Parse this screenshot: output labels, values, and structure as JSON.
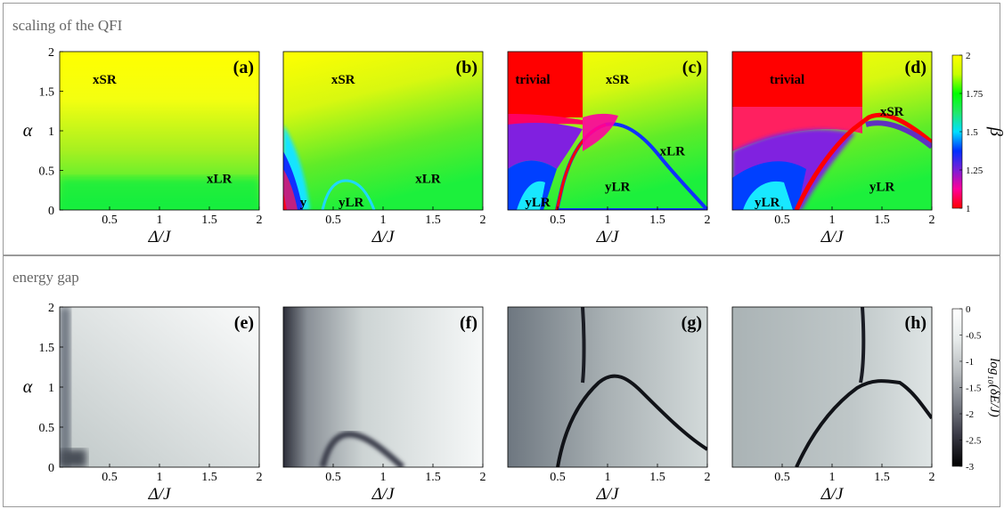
{
  "sections": [
    {
      "title": "scaling of the QFI"
    },
    {
      "title": "energy gap"
    }
  ],
  "chart_data": [
    {
      "type": "heatmap",
      "panel": "(a)",
      "section": "scaling of the QFI",
      "xlabel": "Δ/J",
      "ylabel": "α",
      "xlim": [
        0,
        2
      ],
      "ylim": [
        0,
        2
      ],
      "xticks": [
        "0.5",
        "1",
        "1.5",
        "2"
      ],
      "yticks": [
        "0",
        "0.5",
        "1",
        "1.5",
        "2"
      ],
      "regions": [
        {
          "label": "xSR",
          "x": 0.45,
          "y": 1.65
        },
        {
          "label": "xLR",
          "x": 1.6,
          "y": 0.4
        }
      ]
    },
    {
      "type": "heatmap",
      "panel": "(b)",
      "section": "scaling of the QFI",
      "xlabel": "Δ/J",
      "ylabel": "",
      "xlim": [
        0,
        2
      ],
      "ylim": [
        0,
        2
      ],
      "xticks": [
        "0.5",
        "1",
        "1.5",
        "2"
      ],
      "regions": [
        {
          "label": "xSR",
          "x": 0.6,
          "y": 1.65
        },
        {
          "label": "xLR",
          "x": 1.45,
          "y": 0.4
        },
        {
          "label": "y",
          "x": 0.2,
          "y": 0.1
        },
        {
          "label": "yLR",
          "x": 0.68,
          "y": 0.1
        }
      ]
    },
    {
      "type": "heatmap",
      "panel": "(c)",
      "section": "scaling of the QFI",
      "xlabel": "Δ/J",
      "ylabel": "",
      "xlim": [
        0,
        2
      ],
      "ylim": [
        0,
        2
      ],
      "xticks": [
        "0.5",
        "1",
        "1.5",
        "2"
      ],
      "regions": [
        {
          "label": "trivial",
          "x": 0.25,
          "y": 1.65
        },
        {
          "label": "xSR",
          "x": 1.1,
          "y": 1.65
        },
        {
          "label": "xLR",
          "x": 1.65,
          "y": 0.75
        },
        {
          "label": "yLR",
          "x": 0.3,
          "y": 0.1
        },
        {
          "label": "yLR",
          "x": 1.1,
          "y": 0.3
        }
      ]
    },
    {
      "type": "heatmap",
      "panel": "(d)",
      "section": "scaling of the QFI",
      "xlabel": "Δ/J",
      "ylabel": "",
      "xlim": [
        0,
        2
      ],
      "ylim": [
        0,
        2
      ],
      "xticks": [
        "0.5",
        "1",
        "1.5",
        "2"
      ],
      "regions": [
        {
          "label": "trivial",
          "x": 0.55,
          "y": 1.65
        },
        {
          "label": "xSR",
          "x": 1.6,
          "y": 1.25
        },
        {
          "label": "yLR",
          "x": 0.35,
          "y": 0.1
        },
        {
          "label": "yLR",
          "x": 1.5,
          "y": 0.3
        }
      ]
    },
    {
      "type": "heatmap",
      "panel": "(e)",
      "section": "energy gap",
      "xlabel": "Δ/J",
      "ylabel": "α",
      "xlim": [
        0,
        2
      ],
      "ylim": [
        0,
        2
      ],
      "xticks": [
        "0.5",
        "1",
        "1.5",
        "2"
      ],
      "yticks": [
        "0",
        "0.5",
        "1",
        "1.5",
        "2"
      ]
    },
    {
      "type": "heatmap",
      "panel": "(f)",
      "section": "energy gap",
      "xlabel": "Δ/J",
      "ylabel": "",
      "xlim": [
        0,
        2
      ],
      "ylim": [
        0,
        2
      ],
      "xticks": [
        "0.5",
        "1",
        "1.5",
        "2"
      ]
    },
    {
      "type": "heatmap",
      "panel": "(g)",
      "section": "energy gap",
      "xlabel": "Δ/J",
      "ylabel": "",
      "xlim": [
        0,
        2
      ],
      "ylim": [
        0,
        2
      ],
      "xticks": [
        "0.5",
        "1",
        "1.5",
        "2"
      ]
    },
    {
      "type": "heatmap",
      "panel": "(h)",
      "section": "energy gap",
      "xlabel": "Δ/J",
      "ylabel": "",
      "xlim": [
        0,
        2
      ],
      "ylim": [
        0,
        2
      ],
      "xticks": [
        "0.5",
        "1",
        "1.5",
        "2"
      ]
    }
  ],
  "colorbars": [
    {
      "label": "β",
      "min": 1,
      "max": 2,
      "ticks": [
        "2",
        "1.75",
        "1.5",
        "1.25",
        "1"
      ],
      "colors": [
        "#ff0000",
        "#ff0099",
        "#7a1fd6",
        "#0030ff",
        "#00e0ff",
        "#22e86a",
        "#00ff00",
        "#c8ff00",
        "#ffff00"
      ]
    },
    {
      "label": "log₁₀(δE/J)",
      "min": -3,
      "max": 0,
      "ticks": [
        "0",
        "-0.5",
        "-1",
        "-1.5",
        "-2",
        "-2.5",
        "-3"
      ],
      "colors": [
        "#000000",
        "#3a3a46",
        "#7c8088",
        "#b8bcbf",
        "#e6eaea",
        "#ffffff"
      ]
    }
  ]
}
